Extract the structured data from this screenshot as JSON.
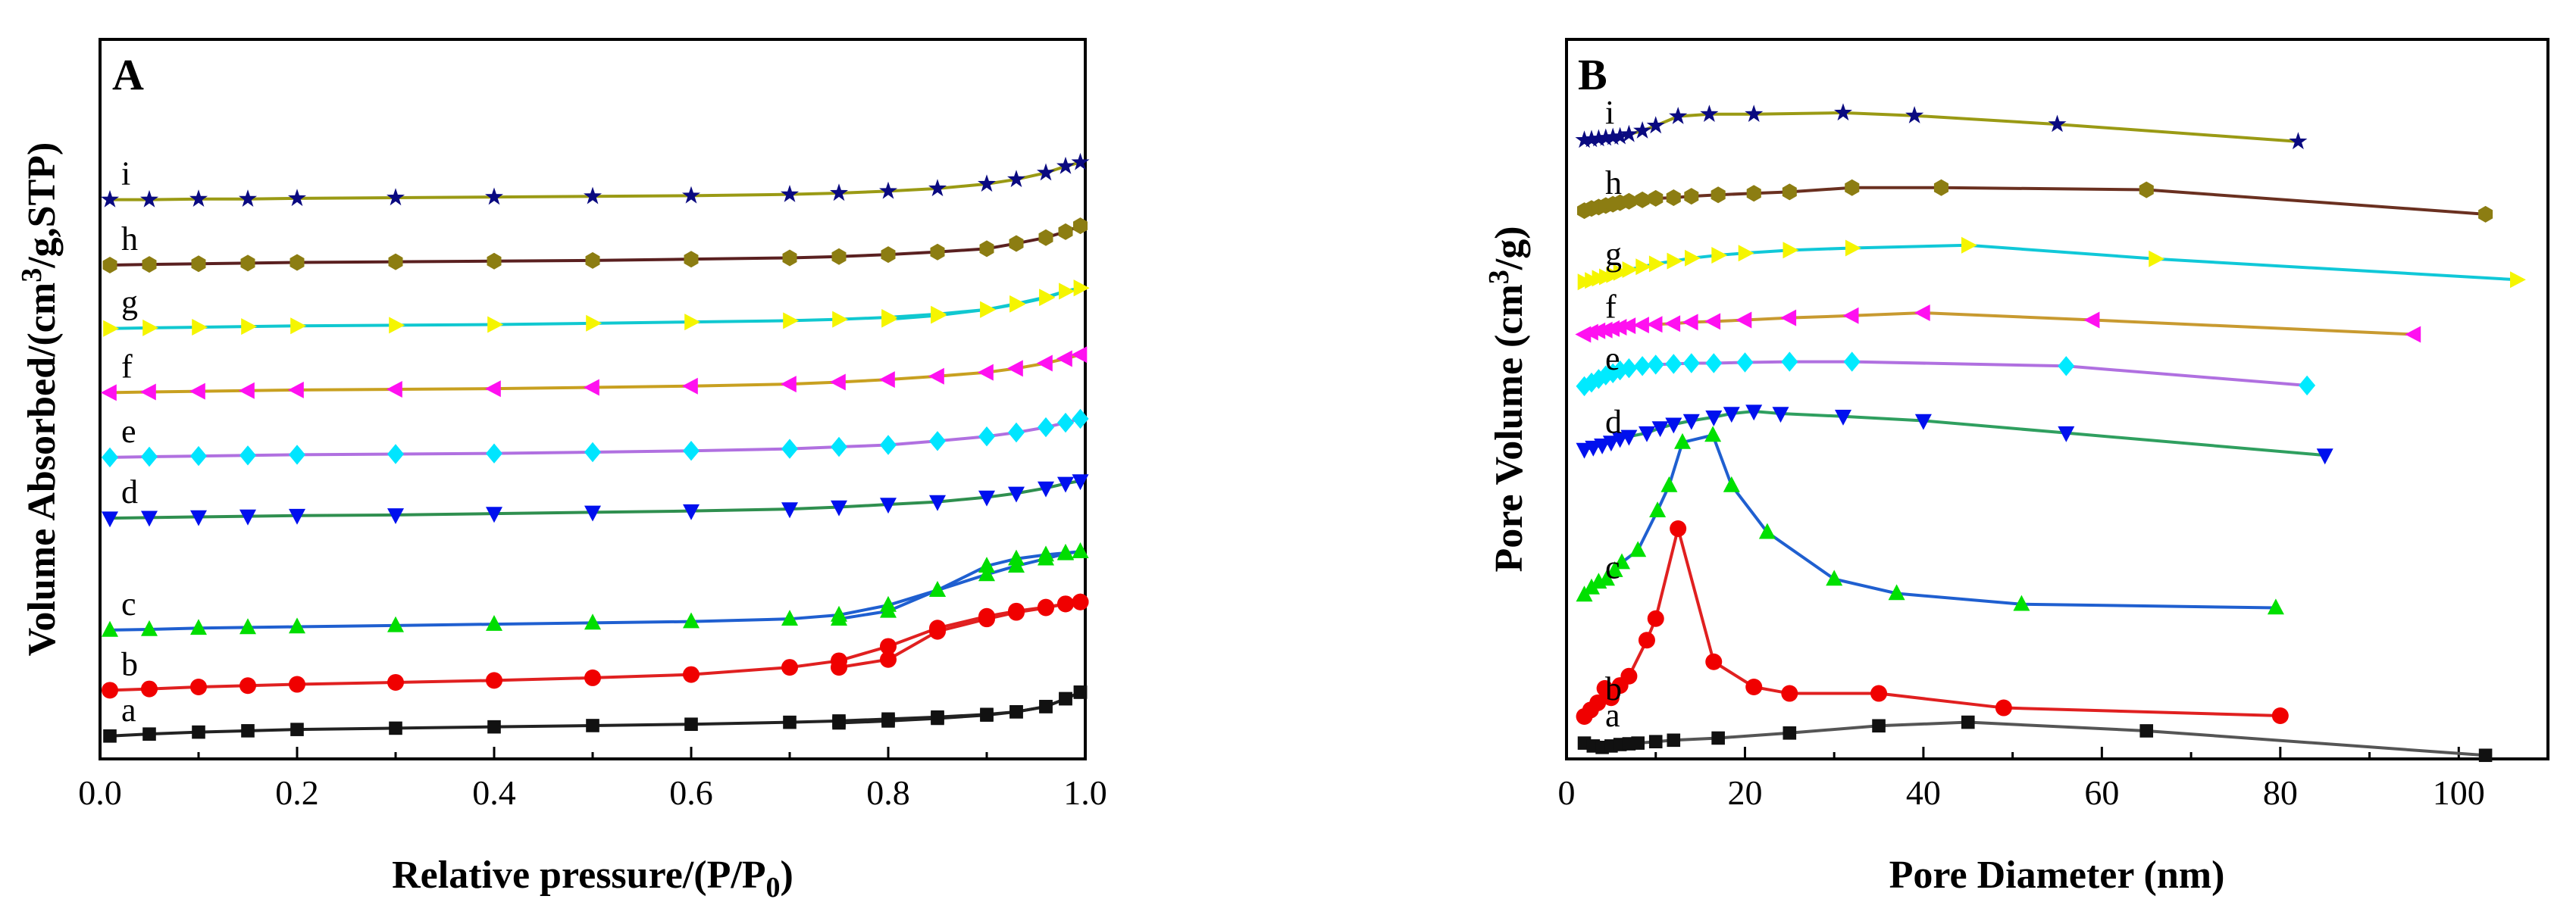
{
  "chart_data": [
    {
      "type": "line",
      "panel": "A",
      "title": "",
      "xlabel": "Relative pressure/(P/P",
      "xlabel_sub": "0",
      "xlabel_close": ")",
      "ylabel": "Volume Absorbed/(cm",
      "ylabel_sup": "3",
      "ylabel_tail": "/g,STP)",
      "xlim": [
        0,
        1
      ],
      "ylim": [
        0,
        11
      ],
      "xticks": [
        "0.0",
        "0.2",
        "0.4",
        "0.6",
        "0.8",
        "1.0"
      ],
      "xtick_values": [
        0,
        0.2,
        0.4,
        0.6,
        0.8,
        1.0
      ],
      "x": [
        0.01,
        0.05,
        0.1,
        0.15,
        0.2,
        0.3,
        0.4,
        0.5,
        0.6,
        0.7,
        0.75,
        0.8,
        0.85,
        0.9,
        0.93,
        0.96,
        0.98,
        0.995
      ],
      "series": [
        {
          "name": "a",
          "label": "a",
          "marker": "square",
          "color": "#111111",
          "line": "#222222",
          "adsorption": [
            0.35,
            0.38,
            0.41,
            0.43,
            0.45,
            0.47,
            0.49,
            0.51,
            0.53,
            0.56,
            0.58,
            0.61,
            0.64,
            0.68,
            0.72,
            0.8,
            0.92,
            1.02
          ],
          "desorption": [
            0.55,
            0.58,
            0.62,
            0.67,
            0.72,
            0.8,
            0.92,
            1.02
          ]
        },
        {
          "name": "b",
          "label": "b",
          "marker": "circle",
          "color": "#f00000",
          "line": "#e02020",
          "adsorption": [
            1.05,
            1.07,
            1.1,
            1.12,
            1.14,
            1.17,
            1.2,
            1.24,
            1.29,
            1.4,
            1.5,
            1.72,
            2.0,
            2.18,
            2.26,
            2.32,
            2.37,
            2.4
          ],
          "desorption": [
            1.4,
            1.52,
            1.95,
            2.14,
            2.24,
            2.31,
            2.37,
            2.4
          ]
        },
        {
          "name": "c",
          "label": "c",
          "marker": "triangle-up",
          "color": "#00dd00",
          "line": "#1f5fd0",
          "adsorption": [
            1.97,
            1.98,
            2.0,
            2.01,
            2.02,
            2.04,
            2.06,
            2.08,
            2.1,
            2.14,
            2.2,
            2.35,
            2.58,
            2.82,
            2.95,
            3.06,
            3.14,
            3.17
          ],
          "desorption": [
            2.14,
            2.26,
            2.58,
            2.95,
            3.06,
            3.12,
            3.15,
            3.17
          ]
        },
        {
          "name": "d",
          "label": "d",
          "marker": "triangle-down",
          "color": "#0010ee",
          "line": "#2f8f4f",
          "adsorption": [
            3.68,
            3.69,
            3.7,
            3.71,
            3.72,
            3.73,
            3.75,
            3.77,
            3.79,
            3.82,
            3.85,
            3.89,
            3.93,
            4.0,
            4.06,
            4.14,
            4.21,
            4.25
          ],
          "desorption": []
        },
        {
          "name": "e",
          "label": "e",
          "marker": "diamond",
          "color": "#00e5ff",
          "line": "#b070e0",
          "adsorption": [
            4.61,
            4.62,
            4.63,
            4.64,
            4.65,
            4.66,
            4.67,
            4.69,
            4.71,
            4.74,
            4.77,
            4.8,
            4.86,
            4.93,
            4.99,
            5.07,
            5.14,
            5.2
          ],
          "desorption": []
        },
        {
          "name": "f",
          "label": "f",
          "marker": "triangle-left",
          "color": "#ff10f0",
          "line": "#c8a020",
          "adsorption": [
            5.6,
            5.61,
            5.62,
            5.63,
            5.64,
            5.65,
            5.66,
            5.68,
            5.7,
            5.73,
            5.76,
            5.8,
            5.85,
            5.91,
            5.97,
            6.05,
            6.12,
            6.18
          ],
          "desorption": []
        },
        {
          "name": "g",
          "label": "g",
          "marker": "triangle-right",
          "color": "#f5f500",
          "line": "#10c8d0",
          "adsorption": [
            6.58,
            6.59,
            6.6,
            6.61,
            6.62,
            6.63,
            6.64,
            6.66,
            6.68,
            6.7,
            6.72,
            6.75,
            6.8,
            6.87,
            6.95,
            7.05,
            7.15,
            7.2
          ],
          "desorption": [
            6.72,
            6.78,
            6.87,
            6.96,
            7.06,
            7.15,
            7.2
          ]
        },
        {
          "name": "h",
          "label": "h",
          "marker": "hexagon",
          "color": "#8c7d12",
          "line": "#5a2020",
          "adsorption": [
            7.55,
            7.56,
            7.57,
            7.58,
            7.59,
            7.6,
            7.61,
            7.62,
            7.64,
            7.66,
            7.68,
            7.71,
            7.75,
            7.8,
            7.88,
            7.97,
            8.06,
            8.15
          ],
          "desorption": []
        },
        {
          "name": "i",
          "label": "i",
          "marker": "star",
          "color": "#0a0a80",
          "line": "#9a9a14",
          "adsorption": [
            8.55,
            8.55,
            8.56,
            8.56,
            8.57,
            8.58,
            8.59,
            8.6,
            8.61,
            8.63,
            8.65,
            8.68,
            8.72,
            8.79,
            8.86,
            8.96,
            9.06,
            9.12
          ],
          "desorption": []
        }
      ]
    },
    {
      "type": "line",
      "panel": "B",
      "title": "",
      "xlabel": "Pore Diameter (nm)",
      "ylabel": "Pore Volume (cm",
      "ylabel_sup": "3",
      "ylabel_tail": "/g)",
      "xlim": [
        0,
        110
      ],
      "ylim": [
        0,
        100
      ],
      "xticks": [
        "0",
        "20",
        "40",
        "60",
        "80",
        "100"
      ],
      "xtick_values": [
        0,
        20,
        40,
        60,
        80,
        100
      ],
      "series": [
        {
          "name": "a",
          "label": "a",
          "marker": "square",
          "color": "#111111",
          "line": "#555555",
          "x": [
            2.0,
            3.0,
            4.0,
            5.0,
            6.0,
            7.0,
            8.0,
            10.0,
            12.0,
            17.0,
            25.0,
            35.0,
            45.0,
            65.0,
            103.0
          ],
          "y": [
            2.2,
            1.8,
            1.6,
            1.8,
            2.0,
            2.1,
            2.2,
            2.4,
            2.6,
            2.9,
            3.6,
            4.6,
            5.1,
            3.9,
            0.5
          ]
        },
        {
          "name": "b",
          "label": "b",
          "marker": "circle",
          "color": "#f00000",
          "line": "#e02020",
          "x": [
            2.0,
            2.7,
            3.5,
            4.3,
            5.0,
            6.0,
            7.0,
            9.0,
            10.0,
            12.5,
            16.5,
            21.0,
            25.0,
            35.0,
            49.0,
            80.0
          ],
          "y": [
            5.9,
            6.8,
            7.8,
            9.8,
            8.5,
            10.2,
            11.5,
            16.5,
            19.5,
            32.0,
            13.5,
            10.0,
            9.1,
            9.1,
            7.1,
            6.0
          ]
        },
        {
          "name": "c",
          "label": "c",
          "marker": "triangle-up",
          "color": "#00e000",
          "line": "#1f5fd0",
          "x": [
            2.0,
            2.8,
            3.6,
            4.5,
            5.4,
            6.2,
            8.0,
            10.2,
            11.5,
            13.0,
            16.4,
            18.5,
            22.5,
            30.0,
            37.0,
            51.0,
            79.5
          ],
          "y": [
            22.8,
            23.8,
            24.6,
            25.0,
            26.2,
            27.3,
            29.0,
            34.5,
            38.0,
            44.0,
            45.0,
            38.0,
            31.5,
            25.0,
            23.0,
            21.5,
            21.0
          ]
        },
        {
          "name": "d",
          "label": "d",
          "marker": "triangle-down",
          "color": "#0010ee",
          "line": "#2f9f5f",
          "x": [
            2.0,
            3.0,
            4.0,
            5.0,
            6.0,
            7.0,
            9.0,
            10.5,
            12.0,
            14.0,
            16.5,
            18.5,
            21.0,
            24.0,
            31.0,
            40.0,
            56.0,
            85.0
          ],
          "y": [
            43.0,
            43.3,
            43.6,
            44.0,
            44.5,
            44.8,
            45.3,
            46.0,
            46.5,
            47.0,
            47.5,
            48.0,
            48.3,
            48.0,
            47.6,
            47.0,
            45.3,
            42.2
          ]
        },
        {
          "name": "e",
          "label": "e",
          "marker": "diamond",
          "color": "#00eaff",
          "line": "#b070e0",
          "x": [
            2.0,
            2.8,
            3.6,
            4.4,
            5.2,
            6.0,
            7.0,
            8.5,
            10.0,
            12.0,
            14.0,
            16.5,
            20.0,
            25.0,
            32.0,
            56.0,
            83.0
          ],
          "y": [
            51.8,
            52.3,
            52.8,
            53.3,
            53.6,
            54.0,
            54.3,
            54.6,
            54.8,
            54.9,
            55.0,
            55.0,
            55.1,
            55.2,
            55.2,
            54.6,
            51.9
          ]
        },
        {
          "name": "f",
          "label": "f",
          "marker": "triangle-left",
          "color": "#ff10f0",
          "line": "#c89a30",
          "x": [
            2.0,
            2.8,
            3.6,
            4.4,
            5.2,
            6.0,
            7.0,
            8.5,
            10.0,
            12.0,
            14.0,
            16.5,
            20.0,
            25.0,
            32.0,
            40.0,
            59.0,
            95.0
          ],
          "y": [
            59.0,
            59.3,
            59.5,
            59.6,
            59.8,
            60.0,
            60.2,
            60.3,
            60.4,
            60.5,
            60.7,
            60.8,
            61.0,
            61.3,
            61.6,
            62.0,
            61.0,
            59.0
          ]
        },
        {
          "name": "g",
          "label": "g",
          "marker": "triangle-right",
          "color": "#f5f500",
          "line": "#10c8d8",
          "x": [
            2.0,
            2.8,
            3.6,
            4.4,
            5.2,
            6.0,
            7.0,
            8.5,
            10.0,
            12.0,
            14.0,
            17.0,
            20.0,
            25.0,
            32.0,
            45.0,
            66.0,
            106.5
          ],
          "y": [
            66.3,
            66.5,
            66.8,
            67.0,
            67.3,
            67.6,
            68.0,
            68.4,
            68.8,
            69.2,
            69.6,
            70.0,
            70.3,
            70.7,
            71.0,
            71.4,
            69.5,
            66.6
          ]
        },
        {
          "name": "h",
          "label": "h",
          "marker": "hexagon",
          "color": "#8c7d12",
          "line": "#6a3020",
          "x": [
            2.0,
            2.8,
            3.6,
            4.4,
            5.2,
            6.0,
            7.0,
            8.5,
            10.0,
            12.0,
            14.0,
            17.0,
            21.0,
            25.0,
            32.0,
            42.0,
            65.0,
            103.0
          ],
          "y": [
            76.2,
            76.5,
            76.7,
            76.9,
            77.1,
            77.3,
            77.5,
            77.7,
            77.9,
            78.0,
            78.2,
            78.4,
            78.6,
            78.8,
            79.4,
            79.4,
            79.1,
            75.7
          ]
        },
        {
          "name": "i",
          "label": "i",
          "marker": "star",
          "color": "#0a0a80",
          "line": "#9a9a14",
          "x": [
            2.0,
            2.8,
            3.6,
            4.4,
            5.2,
            6.0,
            7.0,
            8.5,
            10.0,
            12.5,
            16.0,
            21.0,
            31.0,
            39.0,
            55.0,
            82.0
          ],
          "y": [
            86.0,
            86.1,
            86.2,
            86.3,
            86.4,
            86.5,
            86.8,
            87.3,
            88.0,
            89.3,
            89.6,
            89.6,
            89.8,
            89.4,
            88.2,
            85.8
          ]
        }
      ]
    }
  ]
}
